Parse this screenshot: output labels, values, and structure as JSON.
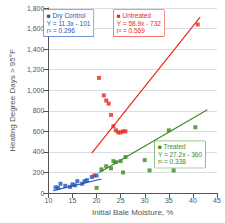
{
  "chart_data": {
    "type": "scatter",
    "title": "",
    "xlabel": "Initial Bale Moisture, %",
    "ylabel": "Heating Degree Days > 95°F",
    "xlim": [
      10,
      45
    ],
    "ylim": [
      0,
      1800
    ],
    "xticks": [
      10,
      15,
      20,
      25,
      30,
      35,
      40,
      45
    ],
    "yticks": [
      0,
      200,
      400,
      600,
      800,
      1000,
      1200,
      1400,
      1600,
      1800
    ],
    "grid": true,
    "series": [
      {
        "name": "Untreated",
        "type": "scatter",
        "marker": "square",
        "color": "#e8291c",
        "x": [
          19.5,
          20.5,
          21.5,
          22.0,
          22.5,
          23.0,
          23.5,
          24.0,
          24.5,
          25.0,
          25.5,
          26.0,
          41.0
        ],
        "values": [
          170,
          1120,
          950,
          900,
          870,
          760,
          650,
          610,
          590,
          590,
          600,
          600,
          1640
        ]
      },
      {
        "name": "Treated",
        "type": "scatter",
        "marker": "square",
        "color": "#3b8a1e",
        "x": [
          20.0,
          21.0,
          22.0,
          23.0,
          23.5,
          24.0,
          25.0,
          25.5,
          26.0,
          30.0,
          31.0,
          35.0,
          36.0,
          40.5
        ],
        "values": [
          50,
          230,
          260,
          240,
          310,
          300,
          310,
          200,
          350,
          320,
          220,
          610,
          220,
          640
        ]
      },
      {
        "name": "Dry Control",
        "type": "scatter",
        "marker": "square",
        "color": "#2255bb",
        "x": [
          11.5,
          12.0,
          12.5,
          13.5,
          14.5,
          15.0,
          15.5,
          16.0,
          17.0,
          17.5,
          18.0,
          19.0,
          20.0
        ],
        "values": [
          55,
          50,
          90,
          70,
          60,
          85,
          75,
          115,
          90,
          115,
          125,
          155,
          170
        ]
      },
      {
        "type": "line",
        "line_style": "solid",
        "color": "#e8291c",
        "x": [
          19.0,
          41.5
        ],
        "values": [
          387.1,
          1712.35
        ]
      },
      {
        "type": "line",
        "line_style": "solid",
        "color": "#3b8a1e",
        "x": [
          20.5,
          43.0
        ],
        "values": [
          197.6,
          809.6
        ]
      },
      {
        "type": "line",
        "line_style": "solid",
        "color": "#2255bb",
        "x": [
          11.0,
          21.0
        ],
        "values": [
          23.3,
          136.3
        ]
      }
    ],
    "annotations": [
      {
        "text": "■ Untreated\nY = 58.9x - 732\nr² = 0.569",
        "color": "#e8291c"
      },
      {
        "text": "■ Treated\nY = 27.2x - 360\nr² = 0.338",
        "color": "#3b8a1e"
      },
      {
        "text": "■ Dry Control\nY = 11.3x - 101\nr² = 0.296",
        "color": "#2255bb"
      }
    ]
  }
}
